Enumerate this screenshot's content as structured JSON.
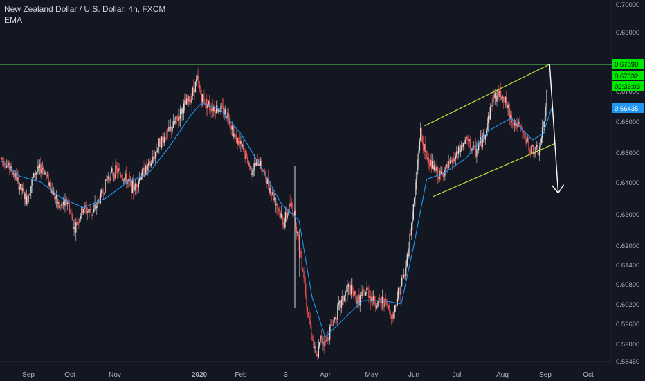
{
  "legend": {
    "title": "New Zealand Dollar / U.S. Dollar, 4h, FXCM",
    "indicator": "EMA"
  },
  "colors": {
    "background": "#131722",
    "axis_text": "#b2b5be",
    "candle_up": "#d9d9d9",
    "candle_down": "#ef5350",
    "ema_line": "#2196f3",
    "channel": "#c8e63c",
    "horizontal_level": "#4caf50",
    "arrow": "#ffffff",
    "tag_green": "#00e600",
    "tag_blue": "#2196f3"
  },
  "price_tags": [
    {
      "label": "0.67890",
      "value": 0.6789,
      "color": "green"
    },
    {
      "label": "0.67632",
      "value": 0.67632,
      "color": "green"
    },
    {
      "label": "02:36:03",
      "value": 0.6737,
      "color": "green"
    },
    {
      "label": "0.66435",
      "value": 0.66435,
      "color": "blue"
    }
  ],
  "chart_data": {
    "type": "line",
    "title": "New Zealand Dollar / U.S. Dollar, 4h, FXCM",
    "xlabel": "",
    "ylabel": "",
    "y_ticks": [
      {
        "label": "0.70000",
        "value": 0.7
      },
      {
        "label": "0.69000",
        "value": 0.69
      },
      {
        "label": "0.67000",
        "value": 0.67
      },
      {
        "label": "0.66000",
        "value": 0.66
      },
      {
        "label": "0.65000",
        "value": 0.65
      },
      {
        "label": "0.64000",
        "value": 0.64
      },
      {
        "label": "0.63000",
        "value": 0.63
      },
      {
        "label": "0.62000",
        "value": 0.62
      },
      {
        "label": "0.61400",
        "value": 0.614
      },
      {
        "label": "0.60800",
        "value": 0.608
      },
      {
        "label": "0.60200",
        "value": 0.602
      },
      {
        "label": "0.59600",
        "value": 0.596
      },
      {
        "label": "0.59000",
        "value": 0.59
      },
      {
        "label": "0.58450",
        "value": 0.5845
      }
    ],
    "x_ticks": [
      {
        "label": "Sep",
        "value": 0.0
      },
      {
        "label": "Oct",
        "value": 1.0
      },
      {
        "label": "Nov",
        "value": 2.0
      },
      {
        "label": "2020",
        "value": 4.0
      },
      {
        "label": "Feb",
        "value": 5.0
      },
      {
        "label": "3",
        "value": 6.1
      },
      {
        "label": "Apr",
        "value": 7.0
      },
      {
        "label": "May",
        "value": 8.0
      },
      {
        "label": "Jun",
        "value": 9.0
      },
      {
        "label": "Jul",
        "value": 10.0
      },
      {
        "label": "Aug",
        "value": 11.0
      },
      {
        "label": "Sep",
        "value": 12.0
      },
      {
        "label": "Oct",
        "value": 13.0
      }
    ],
    "price_path": [
      [
        -0.65,
        0.648
      ],
      [
        -0.35,
        0.643
      ],
      [
        -0.05,
        0.634
      ],
      [
        0.15,
        0.643
      ],
      [
        0.35,
        0.645
      ],
      [
        0.55,
        0.638
      ],
      [
        0.75,
        0.632
      ],
      [
        0.95,
        0.634
      ],
      [
        1.1,
        0.625
      ],
      [
        1.3,
        0.632
      ],
      [
        1.5,
        0.63
      ],
      [
        1.7,
        0.636
      ],
      [
        1.85,
        0.642
      ],
      [
        2.05,
        0.644
      ],
      [
        2.25,
        0.641
      ],
      [
        2.45,
        0.638
      ],
      [
        2.65,
        0.643
      ],
      [
        2.85,
        0.646
      ],
      [
        3.05,
        0.653
      ],
      [
        3.25,
        0.656
      ],
      [
        3.45,
        0.66
      ],
      [
        3.6,
        0.664
      ],
      [
        3.8,
        0.668
      ],
      [
        3.95,
        0.674
      ],
      [
        4.05,
        0.668
      ],
      [
        4.25,
        0.665
      ],
      [
        4.5,
        0.664
      ],
      [
        4.7,
        0.662
      ],
      [
        4.85,
        0.655
      ],
      [
        5.05,
        0.651
      ],
      [
        5.25,
        0.644
      ],
      [
        5.45,
        0.647
      ],
      [
        5.65,
        0.64
      ],
      [
        5.85,
        0.634
      ],
      [
        6.05,
        0.627
      ],
      [
        6.2,
        0.633
      ],
      [
        6.3,
        0.63
      ],
      [
        6.4,
        0.62
      ],
      [
        6.5,
        0.612
      ],
      [
        6.6,
        0.6
      ],
      [
        6.7,
        0.592
      ],
      [
        6.8,
        0.5847
      ],
      [
        6.9,
        0.592
      ],
      [
        7.0,
        0.59
      ],
      [
        7.15,
        0.596
      ],
      [
        7.3,
        0.601
      ],
      [
        7.5,
        0.607
      ],
      [
        7.7,
        0.603
      ],
      [
        7.9,
        0.606
      ],
      [
        8.1,
        0.602
      ],
      [
        8.3,
        0.603
      ],
      [
        8.5,
        0.598
      ],
      [
        8.6,
        0.604
      ],
      [
        8.8,
        0.612
      ],
      [
        8.95,
        0.627
      ],
      [
        9.05,
        0.64
      ],
      [
        9.15,
        0.657
      ],
      [
        9.25,
        0.65
      ],
      [
        9.4,
        0.646
      ],
      [
        9.6,
        0.642
      ],
      [
        9.8,
        0.645
      ],
      [
        10.0,
        0.649
      ],
      [
        10.2,
        0.654
      ],
      [
        10.4,
        0.65
      ],
      [
        10.6,
        0.655
      ],
      [
        10.8,
        0.668
      ],
      [
        11.0,
        0.669
      ],
      [
        11.2,
        0.661
      ],
      [
        11.45,
        0.657
      ],
      [
        11.65,
        0.651
      ],
      [
        11.85,
        0.65
      ],
      [
        12.0,
        0.662
      ],
      [
        12.05,
        0.6763
      ]
    ],
    "series": [
      {
        "values_xy": [
          [
            -0.65,
            0.647
          ],
          [
            -0.2,
            0.642
          ],
          [
            0.3,
            0.64
          ],
          [
            0.8,
            0.635
          ],
          [
            1.3,
            0.632
          ],
          [
            1.8,
            0.635
          ],
          [
            2.3,
            0.64
          ],
          [
            2.8,
            0.643
          ],
          [
            3.3,
            0.652
          ],
          [
            3.8,
            0.662
          ],
          [
            4.05,
            0.666
          ],
          [
            4.5,
            0.664
          ],
          [
            5.0,
            0.656
          ],
          [
            5.5,
            0.645
          ],
          [
            6.0,
            0.633
          ],
          [
            6.4,
            0.628
          ],
          [
            6.7,
            0.604
          ],
          [
            7.0,
            0.592
          ],
          [
            7.3,
            0.596
          ],
          [
            7.8,
            0.603
          ],
          [
            8.3,
            0.603
          ],
          [
            8.7,
            0.602
          ],
          [
            9.0,
            0.62
          ],
          [
            9.3,
            0.641
          ],
          [
            9.7,
            0.643
          ],
          [
            10.2,
            0.648
          ],
          [
            10.7,
            0.657
          ],
          [
            11.2,
            0.661
          ],
          [
            11.7,
            0.654
          ],
          [
            11.95,
            0.656
          ],
          [
            12.15,
            0.6644
          ]
        ]
      }
    ],
    "annotations": {
      "horizontal_level": 0.6789,
      "channel_upper": [
        [
          9.25,
          0.6585
        ],
        [
          12.1,
          0.679
        ]
      ],
      "channel_lower": [
        [
          9.45,
          0.6355
        ],
        [
          12.25,
          0.653
        ]
      ],
      "arrow": [
        [
          12.1,
          0.679
        ],
        [
          12.3,
          0.6366
        ]
      ]
    },
    "ylim": [
      0.5845,
      0.7
    ],
    "grid": false,
    "legend": "top-left"
  }
}
